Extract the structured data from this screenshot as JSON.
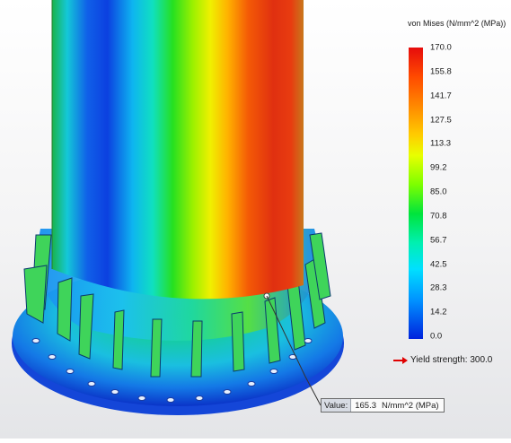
{
  "legend": {
    "title": "von Mises (N/mm^2 (MPa))",
    "ticks": [
      "170.0",
      "155.8",
      "141.7",
      "127.5",
      "113.3",
      "99.2",
      "85.0",
      "70.8",
      "56.7",
      "42.5",
      "28.3",
      "14.2",
      "0.0"
    ],
    "min": 0.0,
    "max": 170.0
  },
  "yield": {
    "label": "Yield strength: 300.0",
    "arrow_color": "#e00000"
  },
  "probe": {
    "prefix": "Value:",
    "value": "165.3",
    "unit": "N/mm^2 (MPa)"
  },
  "colors": {
    "high": "#e60c0c",
    "mid": "#7dff00",
    "low": "#0022dd"
  }
}
